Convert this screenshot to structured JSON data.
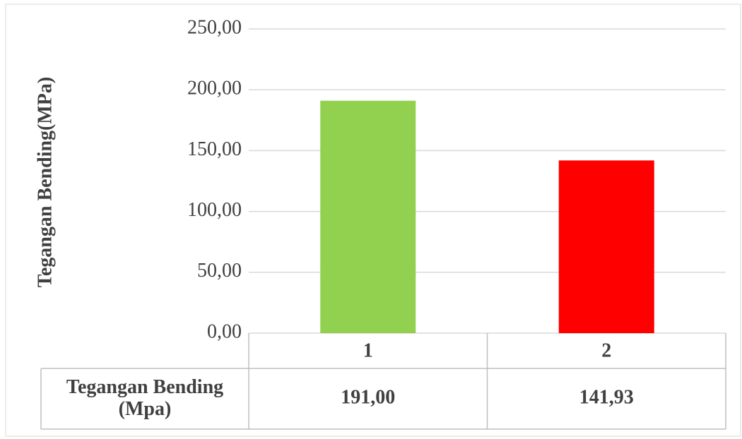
{
  "chart_data": {
    "type": "bar",
    "ylabel": "Tegangan Bending(MPa)",
    "categories": [
      "1",
      "2"
    ],
    "series": [
      {
        "name": "Tegangan Bending (Mpa)",
        "colors": [
          "#92d050",
          "#ff0000"
        ],
        "values": [
          191,
          141.93
        ],
        "value_labels": [
          "191,00",
          "141,93"
        ]
      }
    ],
    "ylim": [
      0,
      250
    ],
    "yticks": [
      {
        "value": 0,
        "label": "0,00"
      },
      {
        "value": 50,
        "label": "50,00"
      },
      {
        "value": 100,
        "label": "100,00"
      },
      {
        "value": 150,
        "label": "150,00"
      },
      {
        "value": 200,
        "label": "200,00"
      },
      {
        "value": 250,
        "label": "250,00"
      }
    ],
    "grid": true
  }
}
